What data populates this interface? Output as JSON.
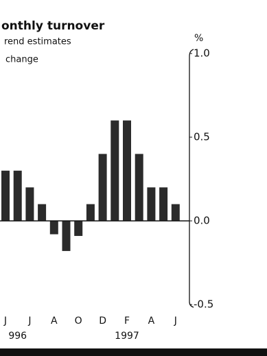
{
  "chart_data": {
    "type": "bar",
    "title": "onthly turnover",
    "subtitle": "rend estimates",
    "y_label": "change",
    "unit": "%",
    "categories": [
      "J",
      null,
      "J",
      null,
      "A",
      null,
      "O",
      null,
      "D",
      null,
      "F",
      null,
      "A",
      null,
      "J"
    ],
    "year_labels": [
      null,
      "996",
      null,
      null,
      null,
      null,
      null,
      null,
      null,
      null,
      "1997",
      null,
      null,
      null,
      null
    ],
    "values": [
      0.3,
      0.3,
      0.2,
      0.1,
      -0.08,
      -0.18,
      -0.09,
      0.1,
      0.4,
      0.6,
      0.6,
      0.4,
      0.2,
      0.2,
      0.1
    ],
    "color": "#2b2b2b",
    "ylim": [
      -0.5,
      1.0
    ],
    "yticks": [
      {
        "value": -0.5,
        "label": "-0.5"
      },
      {
        "value": 0,
        "label": "0.0"
      },
      0.5,
      {
        "value": 1,
        "label": "1.0"
      }
    ],
    "grid": false
  }
}
